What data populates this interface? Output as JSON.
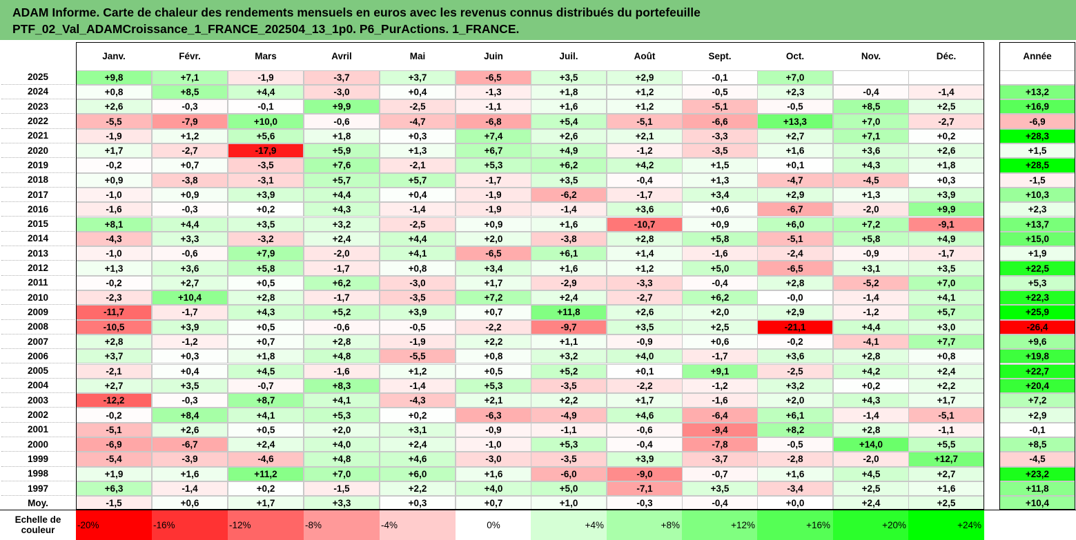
{
  "title_line1": "ADAM Informe. Carte de chaleur des rendements mensuels en euros avec les revenus connus distribués du portefeuille",
  "title_line2": "PTF_02_Val_ADAMCroissance_1_FRANCE_202504_13_1p0. P6_PurActions. 1_FRANCE.",
  "colors": {
    "title_bg": "#7fc97f",
    "neg_strong": "#ff0000",
    "pos_strong": "#00ff00",
    "neutral": "#ffffff"
  },
  "chart_data": {
    "type": "heatmap",
    "columns": [
      "Janv.",
      "Févr.",
      "Mars",
      "Avril",
      "Mai",
      "Juin",
      "Juil.",
      "Août",
      "Sept.",
      "Oct.",
      "Nov.",
      "Déc."
    ],
    "annual_header": "Année",
    "rows": [
      {
        "year": "2025",
        "values": [
          "+9,8",
          "+7,1",
          "-1,9",
          "-3,7",
          "+3,7",
          "-6,5",
          "+3,5",
          "+2,9",
          "-0,1",
          "+7,0",
          "",
          ""
        ],
        "annual": ""
      },
      {
        "year": "2024",
        "values": [
          "+0,8",
          "+8,5",
          "+4,4",
          "-3,0",
          "+0,4",
          "-1,3",
          "+1,8",
          "+1,2",
          "-0,5",
          "+2,3",
          "-0,4",
          "-1,4"
        ],
        "annual": "+13,2"
      },
      {
        "year": "2023",
        "values": [
          "+2,6",
          "-0,3",
          "-0,1",
          "+9,9",
          "-2,5",
          "-1,1",
          "+1,6",
          "+1,2",
          "-5,1",
          "-0,5",
          "+8,5",
          "+2,5"
        ],
        "annual": "+16,9"
      },
      {
        "year": "2022",
        "values": [
          "-5,5",
          "-7,9",
          "+10,0",
          "-0,6",
          "-4,7",
          "-6,8",
          "+5,4",
          "-5,1",
          "-6,6",
          "+13,3",
          "+7,0",
          "-2,7"
        ],
        "annual": "-6,9"
      },
      {
        "year": "2021",
        "values": [
          "-1,9",
          "+1,2",
          "+5,6",
          "+1,8",
          "+0,3",
          "+7,4",
          "+2,6",
          "+2,1",
          "-3,3",
          "+2,7",
          "+7,1",
          "+0,2"
        ],
        "annual": "+28,3"
      },
      {
        "year": "2020",
        "values": [
          "+1,7",
          "-2,7",
          "-17,9",
          "+5,9",
          "+1,3",
          "+6,7",
          "+4,9",
          "-1,2",
          "-3,5",
          "+1,6",
          "+3,6",
          "+2,6"
        ],
        "annual": "+1,5"
      },
      {
        "year": "2019",
        "values": [
          "-0,2",
          "+0,7",
          "-3,5",
          "+7,6",
          "-2,1",
          "+5,3",
          "+6,2",
          "+4,2",
          "+1,5",
          "+0,1",
          "+4,3",
          "+1,8"
        ],
        "annual": "+28,5"
      },
      {
        "year": "2018",
        "values": [
          "+0,9",
          "-3,8",
          "-3,1",
          "+5,7",
          "+5,7",
          "-1,7",
          "+3,5",
          "-0,4",
          "+1,3",
          "-4,7",
          "-4,5",
          "+0,3"
        ],
        "annual": "-1,5"
      },
      {
        "year": "2017",
        "values": [
          "-1,0",
          "+0,9",
          "+3,9",
          "+4,4",
          "+0,4",
          "-1,9",
          "-6,2",
          "-1,7",
          "+3,4",
          "+2,9",
          "+1,3",
          "+3,9"
        ],
        "annual": "+10,3"
      },
      {
        "year": "2016",
        "values": [
          "-1,6",
          "-0,3",
          "+0,2",
          "+4,3",
          "-1,4",
          "-1,9",
          "-1,4",
          "+3,6",
          "+0,6",
          "-6,7",
          "-2,0",
          "+9,9"
        ],
        "annual": "+2,3"
      },
      {
        "year": "2015",
        "values": [
          "+8,1",
          "+4,4",
          "+3,5",
          "+3,2",
          "-2,5",
          "+0,9",
          "+1,6",
          "-10,7",
          "+0,9",
          "+6,0",
          "+7,2",
          "-9,1"
        ],
        "annual": "+13,7"
      },
      {
        "year": "2014",
        "values": [
          "-4,3",
          "+3,3",
          "-3,2",
          "+2,4",
          "+4,4",
          "+2,0",
          "-3,8",
          "+2,8",
          "+5,8",
          "-5,1",
          "+5,8",
          "+4,9"
        ],
        "annual": "+15,0"
      },
      {
        "year": "2013",
        "values": [
          "-1,0",
          "-0,6",
          "+7,9",
          "-2,0",
          "+4,1",
          "-6,5",
          "+6,1",
          "+1,4",
          "-1,6",
          "-2,4",
          "-0,9",
          "-1,7"
        ],
        "annual": "+1,9"
      },
      {
        "year": "2012",
        "values": [
          "+1,3",
          "+3,6",
          "+5,8",
          "-1,7",
          "+0,8",
          "+3,4",
          "+1,6",
          "+1,2",
          "+5,0",
          "-6,5",
          "+3,1",
          "+3,5"
        ],
        "annual": "+22,5"
      },
      {
        "year": "2011",
        "values": [
          "-0,2",
          "+2,7",
          "+0,5",
          "+6,2",
          "-3,0",
          "+1,7",
          "-2,9",
          "-3,3",
          "-0,4",
          "+2,8",
          "-5,2",
          "+7,0"
        ],
        "annual": "+5,3"
      },
      {
        "year": "2010",
        "values": [
          "-2,3",
          "+10,4",
          "+2,8",
          "-1,7",
          "-3,5",
          "+7,2",
          "+2,4",
          "-2,7",
          "+6,2",
          "-0,0",
          "-1,4",
          "+4,1"
        ],
        "annual": "+22,3"
      },
      {
        "year": "2009",
        "values": [
          "-11,7",
          "-1,7",
          "+4,3",
          "+5,2",
          "+3,9",
          "+0,7",
          "+11,8",
          "+2,6",
          "+2,0",
          "+2,9",
          "-1,2",
          "+5,7"
        ],
        "annual": "+25,9"
      },
      {
        "year": "2008",
        "values": [
          "-10,5",
          "+3,9",
          "+0,5",
          "-0,6",
          "-0,5",
          "-2,2",
          "-9,7",
          "+3,5",
          "+2,5",
          "-21,1",
          "+4,4",
          "+3,0"
        ],
        "annual": "-26,4"
      },
      {
        "year": "2007",
        "values": [
          "+2,8",
          "-1,2",
          "+0,7",
          "+2,8",
          "-1,9",
          "+2,2",
          "+1,1",
          "-0,9",
          "+0,6",
          "-0,2",
          "-4,1",
          "+7,7"
        ],
        "annual": "+9,6"
      },
      {
        "year": "2006",
        "values": [
          "+3,7",
          "+0,3",
          "+1,8",
          "+4,8",
          "-5,5",
          "+0,8",
          "+3,2",
          "+4,0",
          "-1,7",
          "+3,6",
          "+2,8",
          "+0,8"
        ],
        "annual": "+19,8"
      },
      {
        "year": "2005",
        "values": [
          "-2,1",
          "+0,4",
          "+4,5",
          "-1,6",
          "+1,2",
          "+0,5",
          "+5,2",
          "+0,1",
          "+9,1",
          "-2,5",
          "+4,2",
          "+2,4"
        ],
        "annual": "+22,7"
      },
      {
        "year": "2004",
        "values": [
          "+2,7",
          "+3,5",
          "-0,7",
          "+8,3",
          "-1,4",
          "+5,3",
          "-3,5",
          "-2,2",
          "-1,2",
          "+3,2",
          "+0,2",
          "+2,2"
        ],
        "annual": "+20,4"
      },
      {
        "year": "2003",
        "values": [
          "-12,2",
          "-0,3",
          "+8,7",
          "+4,1",
          "-4,3",
          "+2,1",
          "+2,2",
          "+1,7",
          "-1,6",
          "+2,0",
          "+4,3",
          "+1,7"
        ],
        "annual": "+7,2"
      },
      {
        "year": "2002",
        "values": [
          "-0,2",
          "+8,4",
          "+4,1",
          "+5,3",
          "+0,2",
          "-6,3",
          "-4,9",
          "+4,6",
          "-6,4",
          "+6,1",
          "-1,4",
          "-5,1"
        ],
        "annual": "+2,9"
      },
      {
        "year": "2001",
        "values": [
          "-5,1",
          "+2,6",
          "+0,5",
          "+2,0",
          "+3,1",
          "-0,9",
          "-1,1",
          "-0,6",
          "-9,4",
          "+8,2",
          "+2,8",
          "-1,1"
        ],
        "annual": "-0,1"
      },
      {
        "year": "2000",
        "values": [
          "-6,9",
          "-6,7",
          "+2,4",
          "+4,0",
          "+2,4",
          "-1,0",
          "+5,3",
          "-0,4",
          "-7,8",
          "-0,5",
          "+14,0",
          "+5,5"
        ],
        "annual": "+8,5"
      },
      {
        "year": "1999",
        "values": [
          "-5,4",
          "-3,9",
          "-4,6",
          "+4,8",
          "+4,6",
          "-3,0",
          "-3,5",
          "+3,9",
          "-3,7",
          "-2,8",
          "-2,0",
          "+12,7"
        ],
        "annual": "-4,5"
      },
      {
        "year": "1998",
        "values": [
          "+1,9",
          "+1,6",
          "+11,2",
          "+7,0",
          "+6,0",
          "+1,6",
          "-6,0",
          "-9,0",
          "-0,7",
          "+1,6",
          "+4,5",
          "+2,7"
        ],
        "annual": "+23,2"
      },
      {
        "year": "1997",
        "values": [
          "+6,3",
          "-1,4",
          "+0,2",
          "-1,5",
          "+2,2",
          "+4,0",
          "+5,0",
          "-7,1",
          "+3,5",
          "-3,4",
          "+2,5",
          "+1,6"
        ],
        "annual": "+11,8"
      },
      {
        "year": "Moy.",
        "values": [
          "-1,5",
          "+0,6",
          "+1,7",
          "+3,3",
          "+0,3",
          "+0,7",
          "+1,0",
          "-0,3",
          "-0,4",
          "+0,0",
          "+2,4",
          "+2,5"
        ],
        "annual": "+10,4"
      }
    ],
    "scale_label": "Echelle de couleur",
    "scale": [
      {
        "label": "-20%",
        "value": -20
      },
      {
        "label": "-16%",
        "value": -16
      },
      {
        "label": "-12%",
        "value": -12
      },
      {
        "label": "-8%",
        "value": -8
      },
      {
        "label": "-4%",
        "value": -4
      },
      {
        "label": "0%",
        "value": 0
      },
      {
        "label": "+4%",
        "value": 4
      },
      {
        "label": "+8%",
        "value": 8
      },
      {
        "label": "+12%",
        "value": 12
      },
      {
        "label": "+16%",
        "value": 16
      },
      {
        "label": "+20%",
        "value": 20
      },
      {
        "label": "+24%",
        "value": 24
      }
    ]
  }
}
